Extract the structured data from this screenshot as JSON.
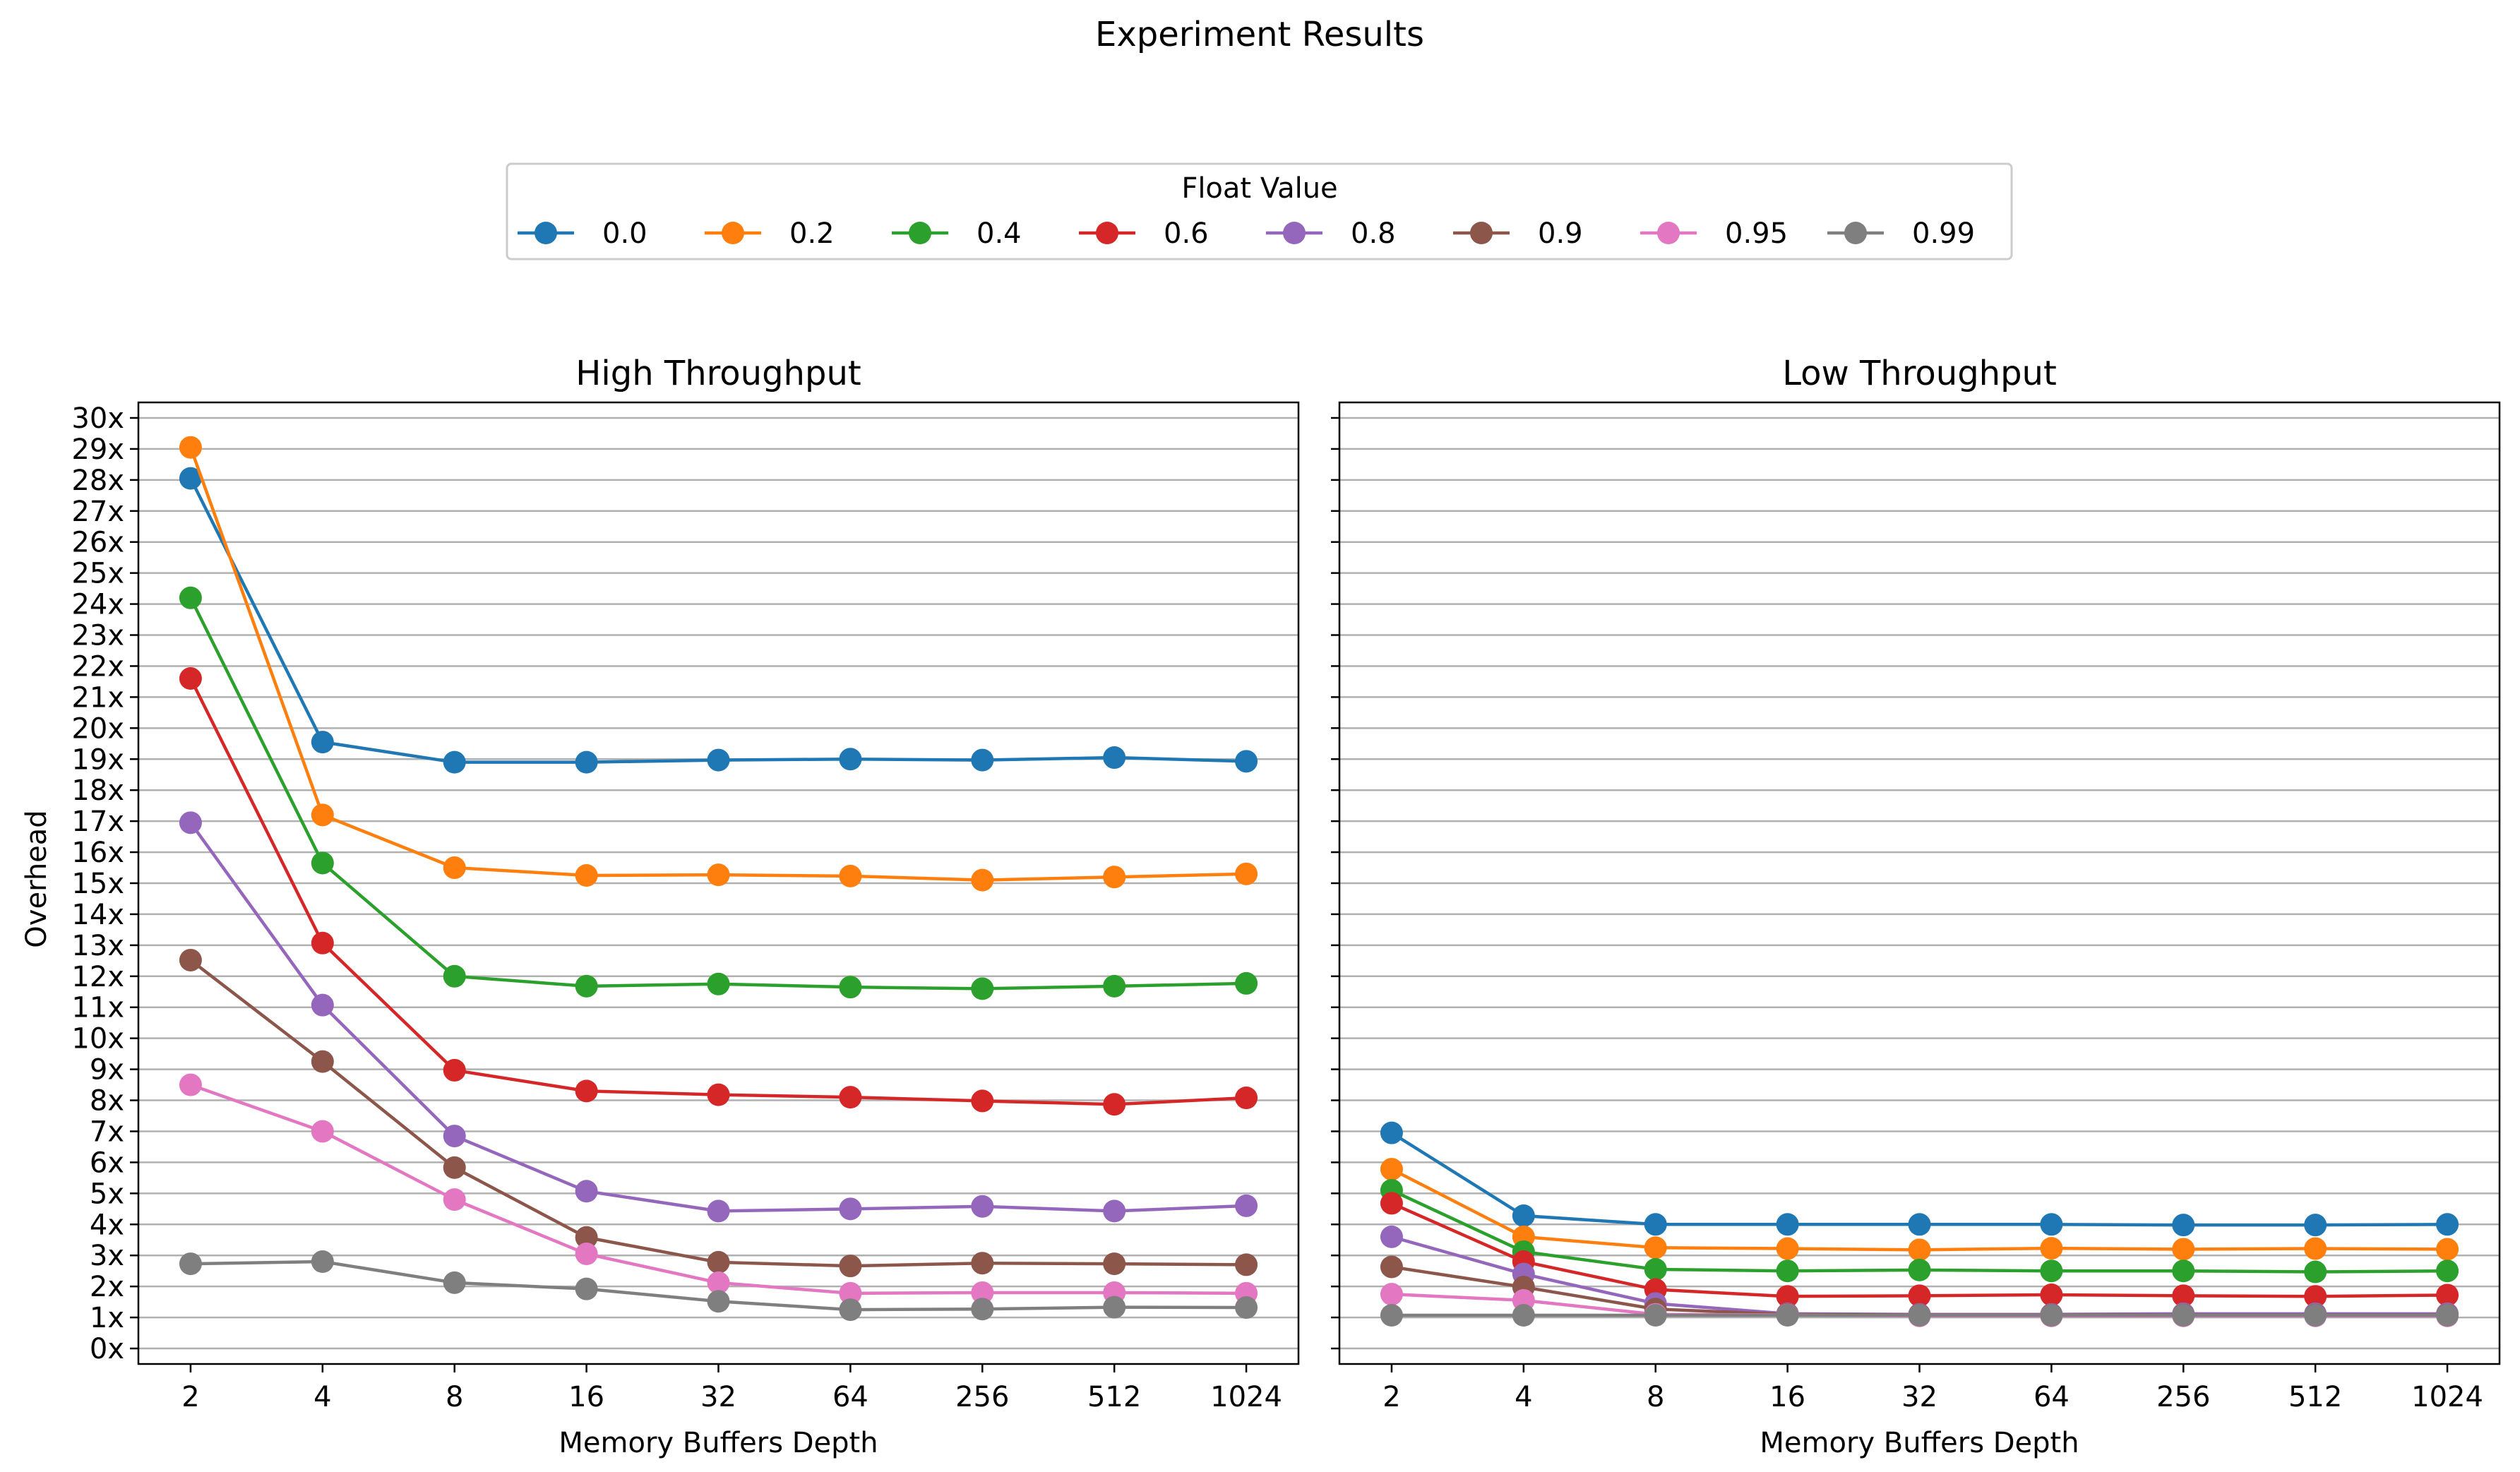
{
  "chart_data": {
    "title": "Experiment Results",
    "legend": {
      "title": "Float Value",
      "placement": "top-center"
    },
    "series": [
      {
        "name": "0.0",
        "color": "#1f77b4"
      },
      {
        "name": "0.2",
        "color": "#ff7f0e"
      },
      {
        "name": "0.4",
        "color": "#2ca02c"
      },
      {
        "name": "0.6",
        "color": "#d62728"
      },
      {
        "name": "0.8",
        "color": "#9467bd"
      },
      {
        "name": "0.9",
        "color": "#8c564b"
      },
      {
        "name": "0.95",
        "color": "#e377c2"
      },
      {
        "name": "0.99",
        "color": "#7f7f7f"
      }
    ],
    "ylabel": "Overhead",
    "ylim": [
      -0.5,
      30.5
    ],
    "yticks": [
      0,
      1,
      2,
      3,
      4,
      5,
      6,
      7,
      8,
      9,
      10,
      11,
      12,
      13,
      14,
      15,
      16,
      17,
      18,
      19,
      20,
      21,
      22,
      23,
      24,
      25,
      26,
      27,
      28,
      29,
      30
    ],
    "ytick_suffix": "x",
    "grid": "horizontal",
    "panels": [
      {
        "type": "line",
        "title": "High Throughput",
        "xlabel": "Memory Buffers Depth",
        "categories": [
          "2",
          "4",
          "8",
          "16",
          "32",
          "64",
          "256",
          "512",
          "1024"
        ],
        "series_values": {
          "0.0": [
            28.05,
            19.55,
            18.9,
            18.9,
            18.97,
            19.0,
            18.97,
            19.05,
            18.93
          ],
          "0.2": [
            29.05,
            17.2,
            15.5,
            15.25,
            15.27,
            15.23,
            15.1,
            15.2,
            15.3
          ],
          "0.4": [
            24.2,
            15.65,
            12.0,
            11.68,
            11.75,
            11.65,
            11.6,
            11.68,
            11.77
          ],
          "0.6": [
            21.6,
            13.07,
            8.97,
            8.3,
            8.18,
            8.1,
            7.98,
            7.87,
            8.08
          ],
          "0.8": [
            16.95,
            11.07,
            6.85,
            5.07,
            4.43,
            4.5,
            4.58,
            4.43,
            4.6
          ],
          "0.9": [
            12.52,
            9.25,
            5.83,
            3.58,
            2.78,
            2.66,
            2.75,
            2.73,
            2.7
          ],
          "0.95": [
            8.5,
            7.0,
            4.8,
            3.05,
            2.12,
            1.78,
            1.8,
            1.8,
            1.78
          ],
          "0.99": [
            2.73,
            2.8,
            2.12,
            1.92,
            1.52,
            1.25,
            1.27,
            1.33,
            1.32
          ]
        }
      },
      {
        "type": "line",
        "title": "Low Throughput",
        "xlabel": "Memory Buffers Depth",
        "categories": [
          "2",
          "4",
          "8",
          "16",
          "32",
          "64",
          "256",
          "512",
          "1024"
        ],
        "series_values": {
          "0.0": [
            6.95,
            4.28,
            4.0,
            4.0,
            4.0,
            4.0,
            3.98,
            3.98,
            4.0
          ],
          "0.2": [
            5.78,
            3.6,
            3.25,
            3.22,
            3.18,
            3.23,
            3.2,
            3.22,
            3.2
          ],
          "0.4": [
            5.1,
            3.12,
            2.55,
            2.5,
            2.53,
            2.5,
            2.5,
            2.47,
            2.5
          ],
          "0.6": [
            4.68,
            2.8,
            1.9,
            1.68,
            1.7,
            1.73,
            1.7,
            1.68,
            1.72
          ],
          "0.8": [
            3.6,
            2.4,
            1.45,
            1.12,
            1.1,
            1.1,
            1.12,
            1.12,
            1.12
          ],
          "0.9": [
            2.63,
            1.98,
            1.27,
            1.1,
            1.08,
            1.08,
            1.08,
            1.08,
            1.08
          ],
          "0.95": [
            1.75,
            1.55,
            1.1,
            1.08,
            1.05,
            1.05,
            1.05,
            1.05,
            1.05
          ],
          "0.99": [
            1.07,
            1.07,
            1.07,
            1.07,
            1.07,
            1.07,
            1.07,
            1.07,
            1.07
          ]
        }
      }
    ]
  }
}
